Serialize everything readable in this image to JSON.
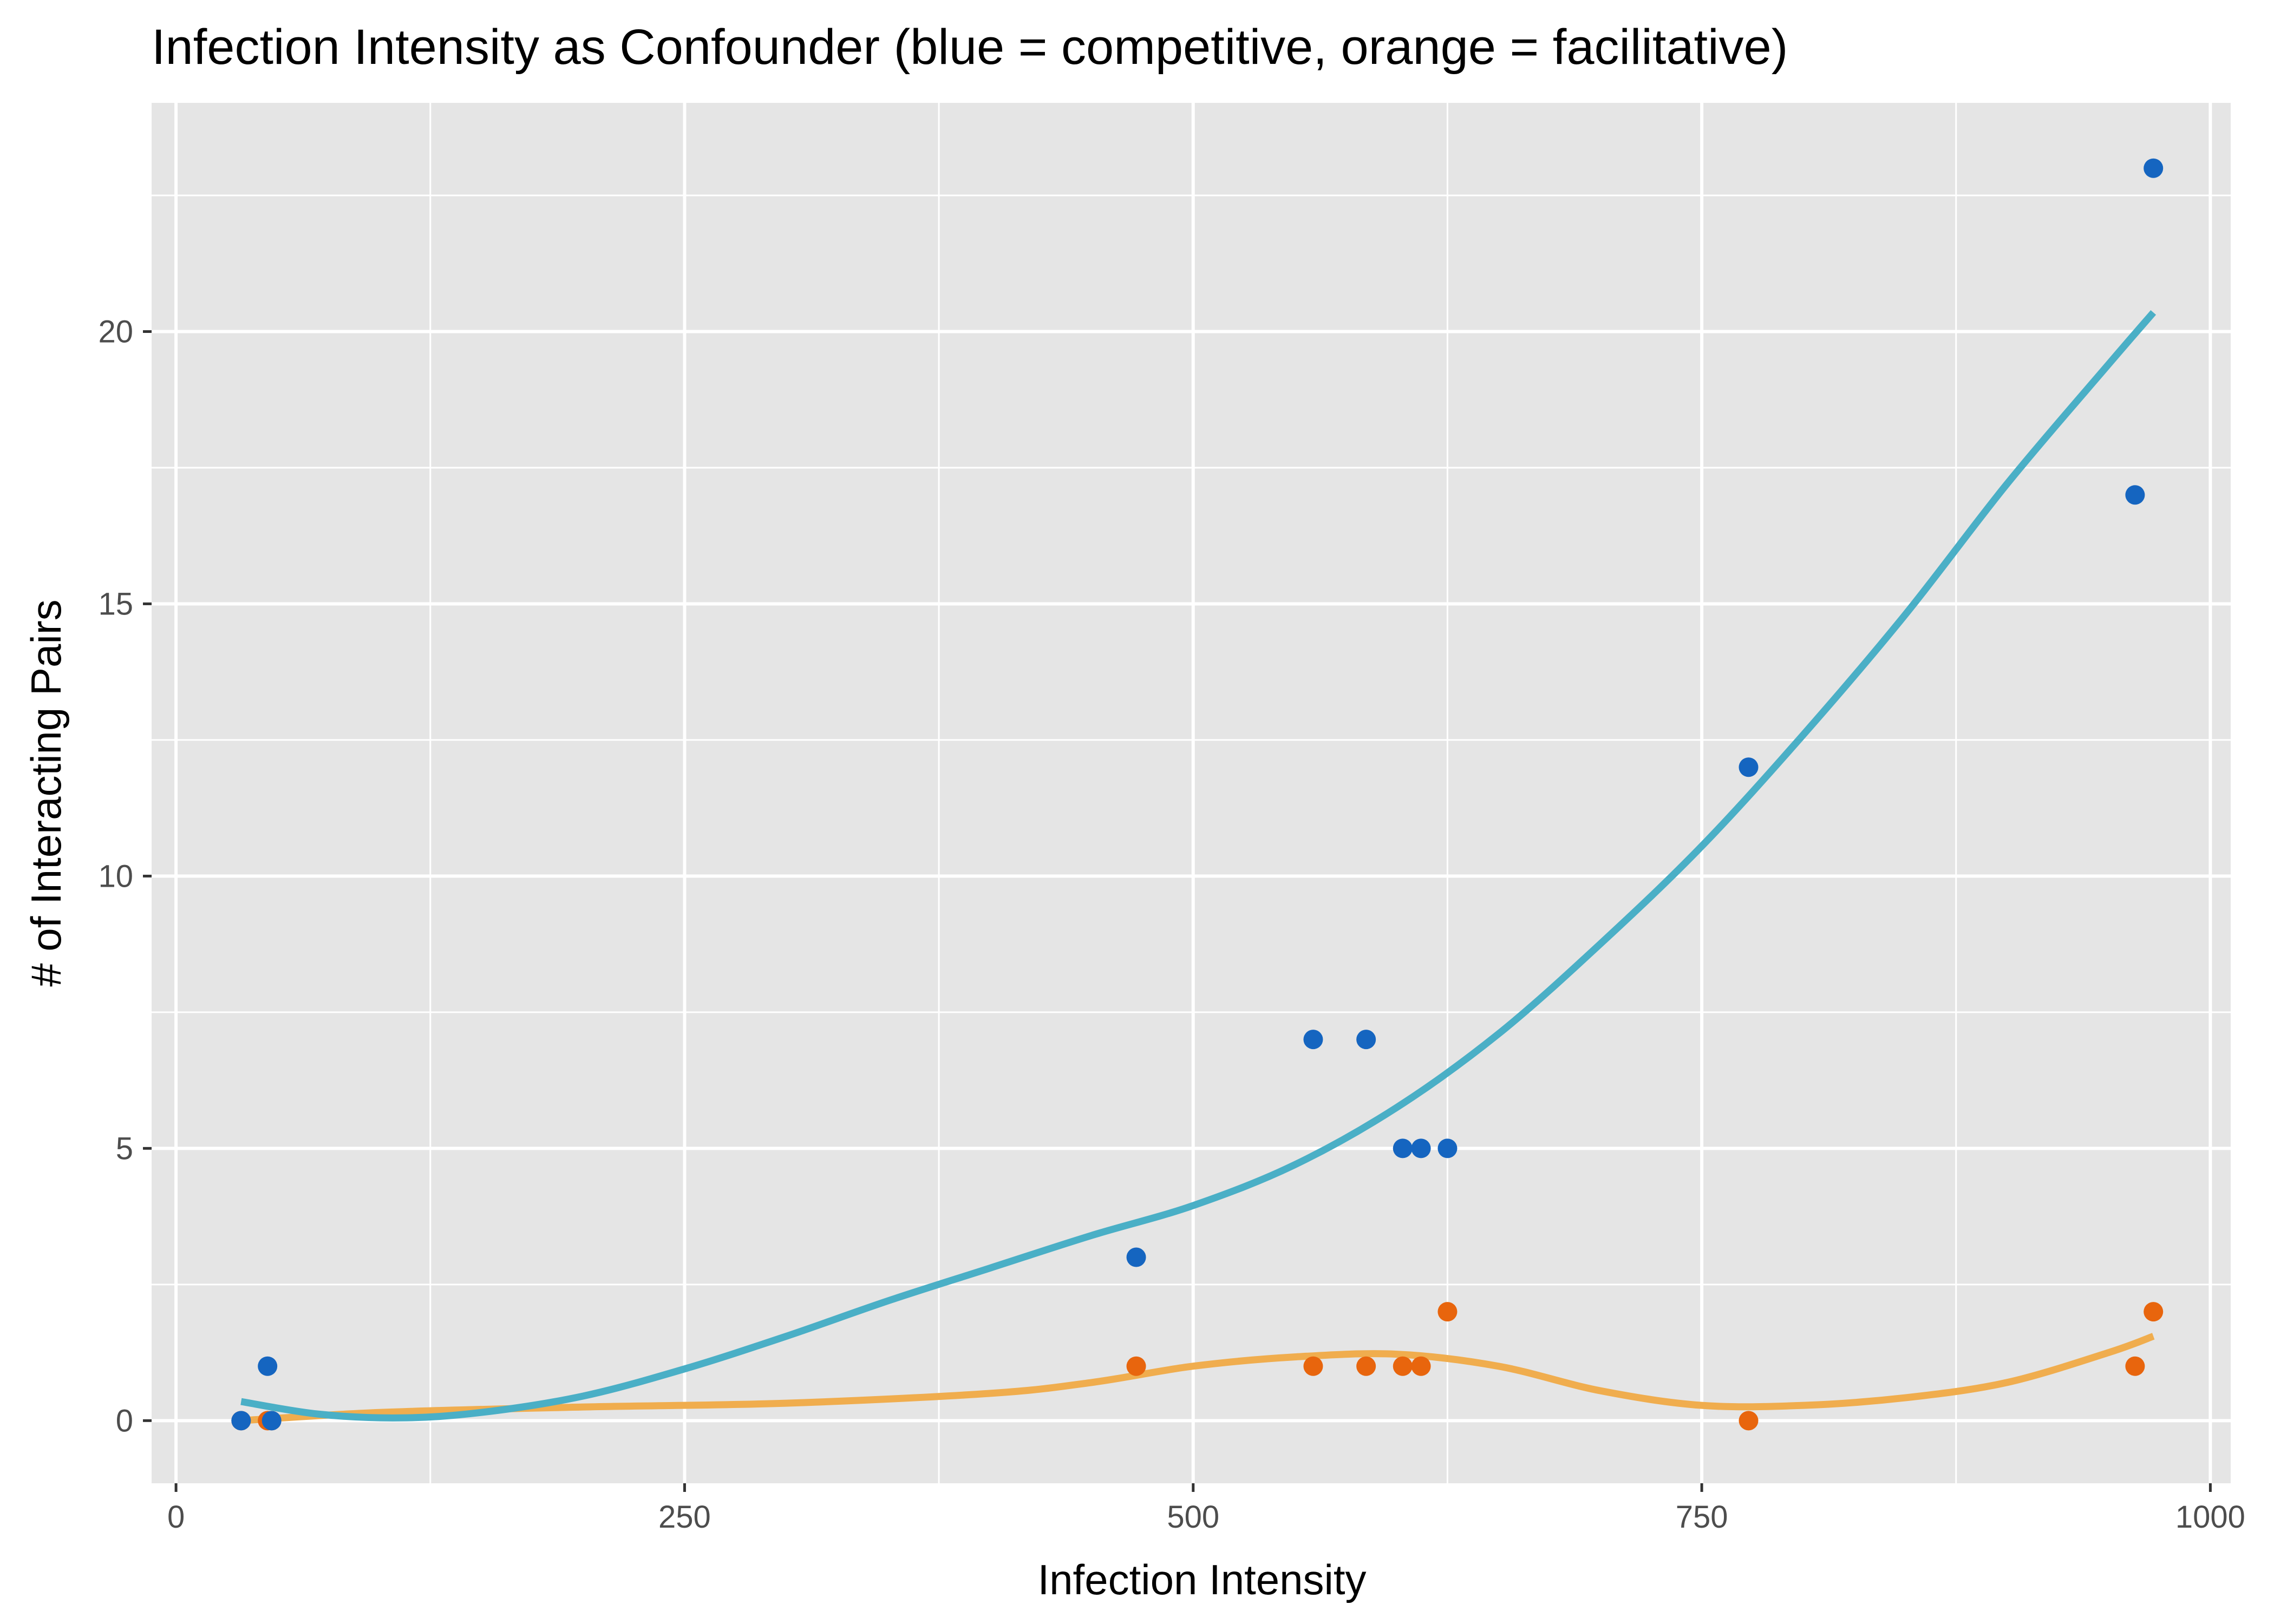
{
  "chart_data": {
    "type": "scatter",
    "title": "Infection Intensity as Confounder (blue = competitive, orange = facilitative)",
    "xlabel": "Infection Intensity",
    "ylabel": "# of Interacting Pairs",
    "xlim": [
      -12,
      1010
    ],
    "ylim": [
      -1.15,
      24.2
    ],
    "x_ticks": [
      0,
      250,
      500,
      750,
      1000
    ],
    "x_tick_labels": [
      "0",
      "250",
      "500",
      "750",
      "1000"
    ],
    "y_ticks": [
      0,
      5,
      10,
      15,
      20
    ],
    "y_tick_labels": [
      "0",
      "5",
      "10",
      "15",
      "20"
    ],
    "grid": true,
    "legend": "none",
    "background": "#e5e5e5",
    "grid_color": "#ffffff",
    "series": [
      {
        "key": "competitive",
        "color": "#1565c0",
        "smooth_color": "#4aafc6",
        "points": [
          {
            "x": 32,
            "y": 0
          },
          {
            "x": 45,
            "y": 1
          },
          {
            "x": 47,
            "y": 0
          },
          {
            "x": 472,
            "y": 3
          },
          {
            "x": 559,
            "y": 7
          },
          {
            "x": 585,
            "y": 7
          },
          {
            "x": 603,
            "y": 5
          },
          {
            "x": 612,
            "y": 5
          },
          {
            "x": 625,
            "y": 5
          },
          {
            "x": 773,
            "y": 12
          },
          {
            "x": 963,
            "y": 17
          },
          {
            "x": 972,
            "y": 23
          }
        ],
        "smooth": [
          {
            "x": 32,
            "y": 0.35
          },
          {
            "x": 70,
            "y": 0.12
          },
          {
            "x": 110,
            "y": 0.05
          },
          {
            "x": 150,
            "y": 0.15
          },
          {
            "x": 200,
            "y": 0.45
          },
          {
            "x": 250,
            "y": 0.95
          },
          {
            "x": 300,
            "y": 1.55
          },
          {
            "x": 350,
            "y": 2.2
          },
          {
            "x": 400,
            "y": 2.8
          },
          {
            "x": 450,
            "y": 3.4
          },
          {
            "x": 500,
            "y": 3.95
          },
          {
            "x": 550,
            "y": 4.7
          },
          {
            "x": 600,
            "y": 5.75
          },
          {
            "x": 650,
            "y": 7.1
          },
          {
            "x": 700,
            "y": 8.75
          },
          {
            "x": 750,
            "y": 10.55
          },
          {
            "x": 800,
            "y": 12.6
          },
          {
            "x": 850,
            "y": 14.8
          },
          {
            "x": 900,
            "y": 17.2
          },
          {
            "x": 950,
            "y": 19.4
          },
          {
            "x": 972,
            "y": 20.35
          }
        ]
      },
      {
        "key": "facilitative",
        "color": "#e8650d",
        "smooth_color": "#f0ad4e",
        "points": [
          {
            "x": 32,
            "y": 0
          },
          {
            "x": 45,
            "y": 0
          },
          {
            "x": 47,
            "y": 0
          },
          {
            "x": 472,
            "y": 1
          },
          {
            "x": 559,
            "y": 1
          },
          {
            "x": 585,
            "y": 1
          },
          {
            "x": 603,
            "y": 1
          },
          {
            "x": 612,
            "y": 1
          },
          {
            "x": 625,
            "y": 2
          },
          {
            "x": 773,
            "y": 0
          },
          {
            "x": 963,
            "y": 1
          },
          {
            "x": 972,
            "y": 2
          }
        ],
        "smooth": [
          {
            "x": 32,
            "y": 0.0
          },
          {
            "x": 100,
            "y": 0.15
          },
          {
            "x": 200,
            "y": 0.25
          },
          {
            "x": 300,
            "y": 0.32
          },
          {
            "x": 400,
            "y": 0.5
          },
          {
            "x": 450,
            "y": 0.7
          },
          {
            "x": 500,
            "y": 1.0
          },
          {
            "x": 550,
            "y": 1.17
          },
          {
            "x": 600,
            "y": 1.22
          },
          {
            "x": 650,
            "y": 1.0
          },
          {
            "x": 700,
            "y": 0.55
          },
          {
            "x": 750,
            "y": 0.28
          },
          {
            "x": 800,
            "y": 0.28
          },
          {
            "x": 850,
            "y": 0.42
          },
          {
            "x": 900,
            "y": 0.7
          },
          {
            "x": 950,
            "y": 1.25
          },
          {
            "x": 972,
            "y": 1.55
          }
        ]
      }
    ]
  }
}
